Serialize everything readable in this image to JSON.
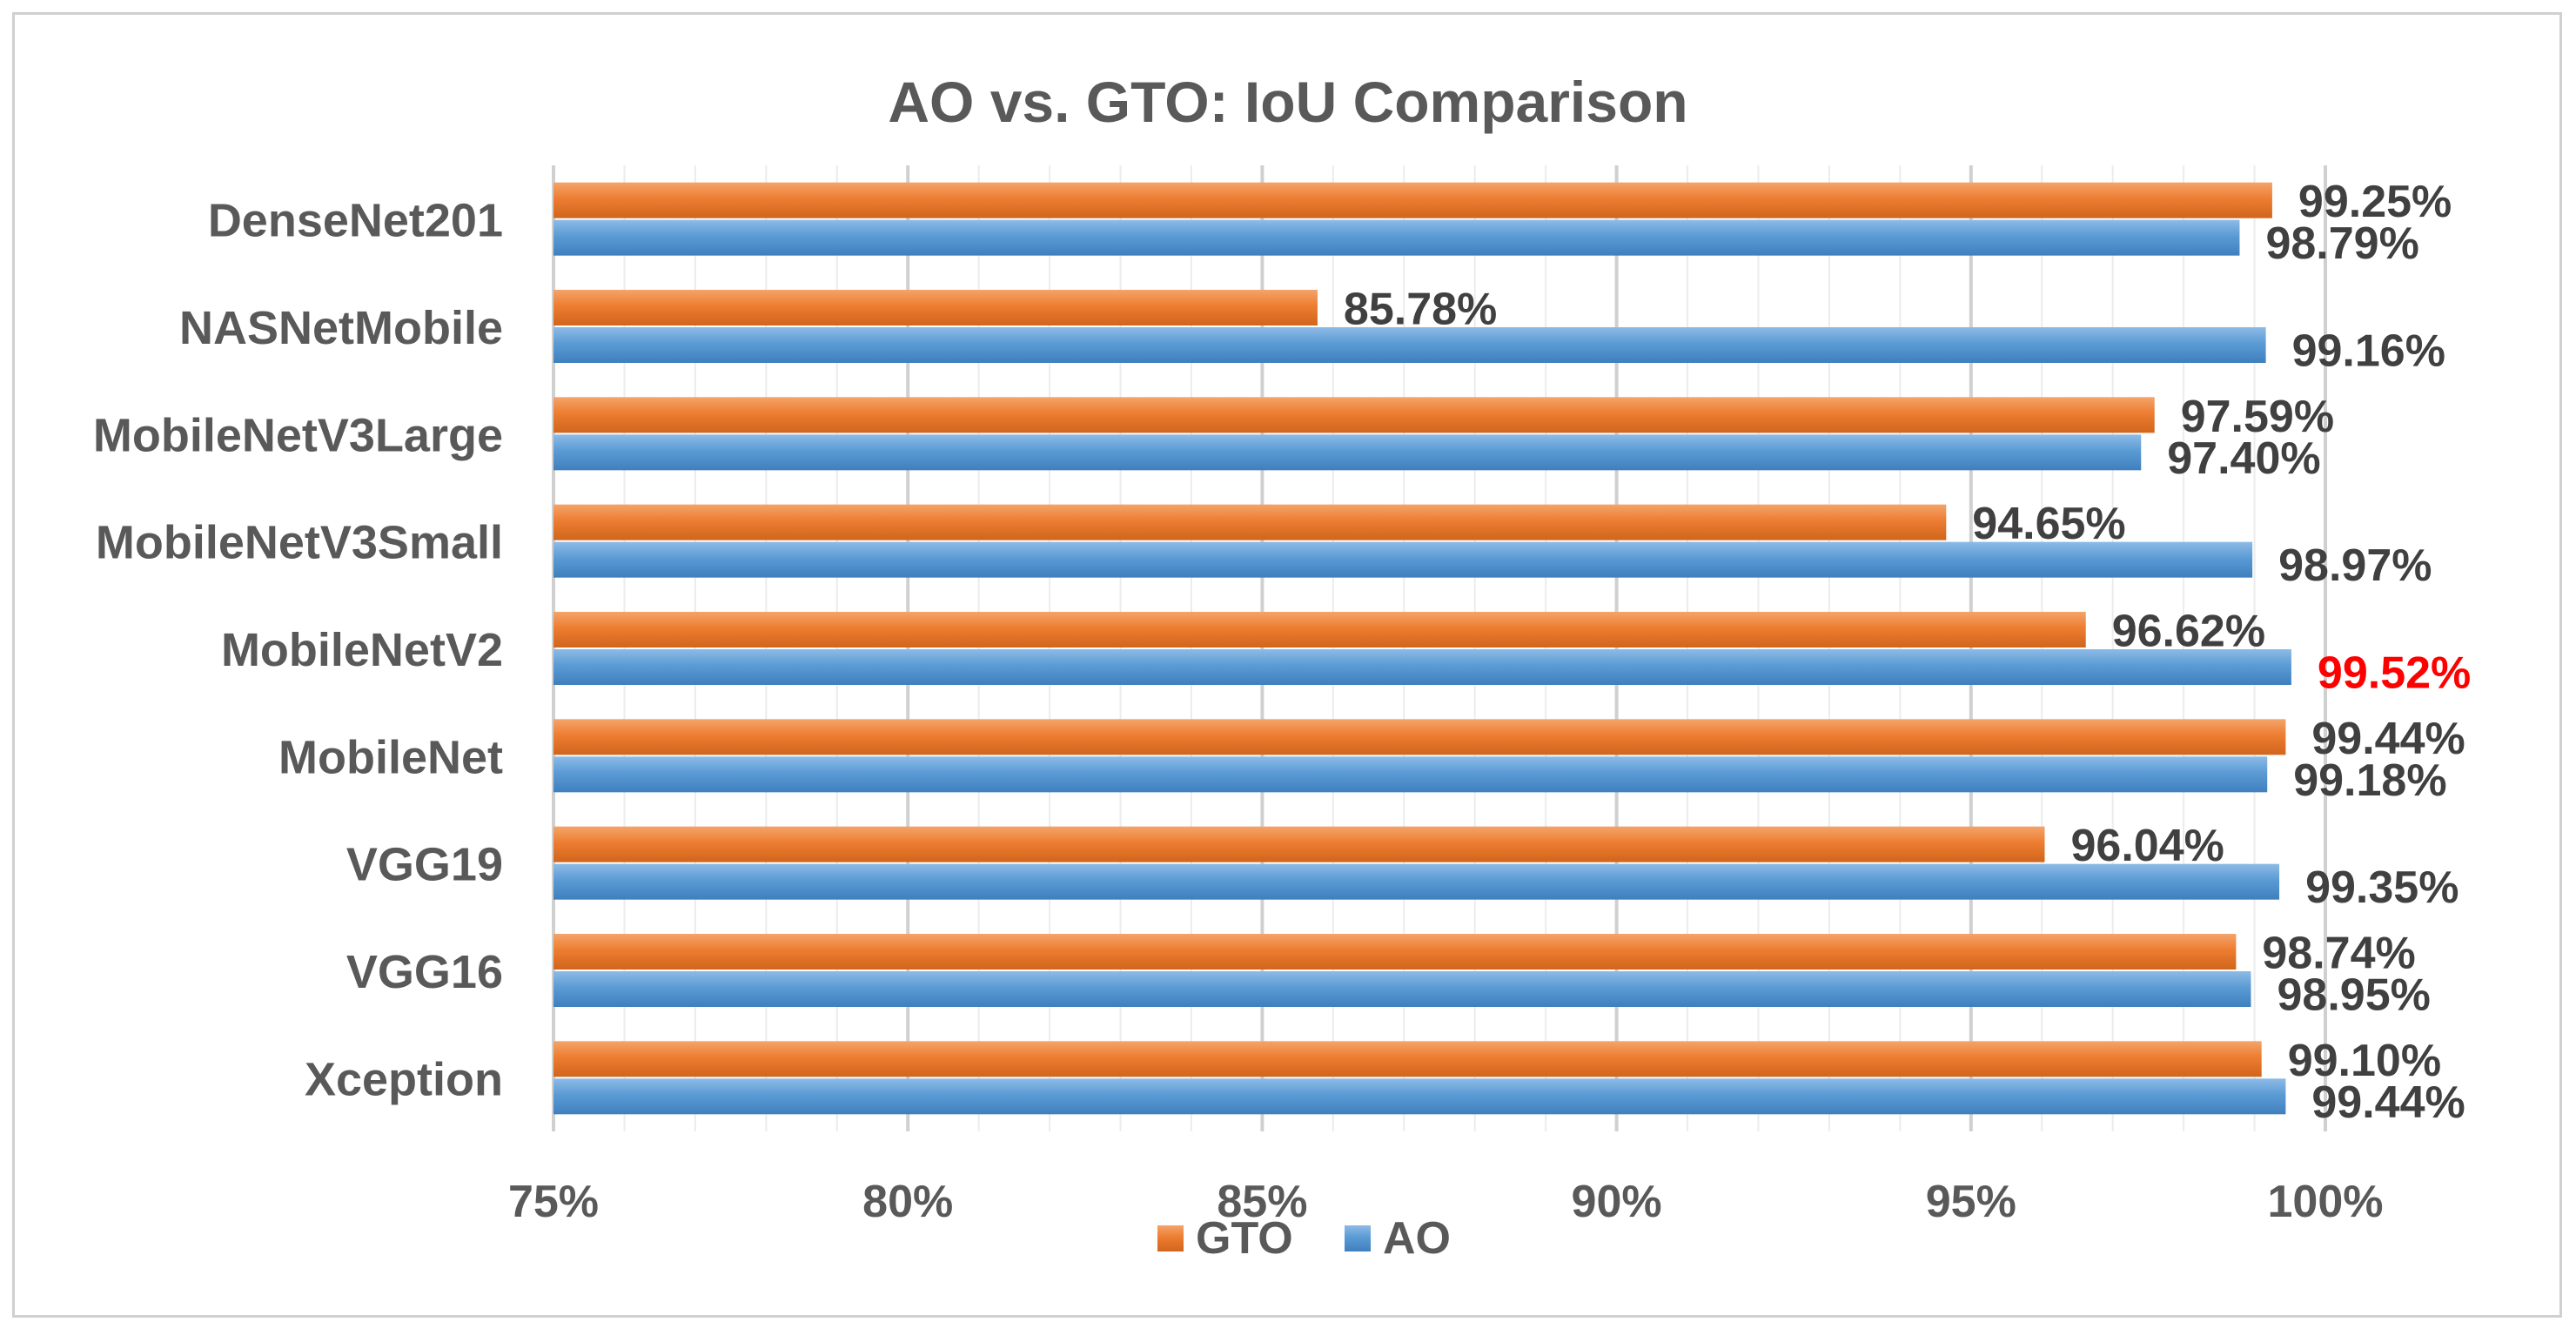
{
  "chart_data": {
    "type": "bar",
    "orientation": "horizontal",
    "title": "AO vs. GTO: IoU Comparison",
    "xlabel": "",
    "ylabel": "",
    "xlim": [
      75,
      100
    ],
    "tick_values": [
      75,
      80,
      85,
      90,
      95,
      100
    ],
    "tick_labels": [
      "75%",
      "80%",
      "85%",
      "90%",
      "95%",
      "100%"
    ],
    "grid": true,
    "legend_position": "bottom",
    "categories": [
      "DenseNet201",
      "NASNetMobile",
      "MobileNetV3Large",
      "MobileNetV3Small",
      "MobileNetV2",
      "MobileNet",
      "VGG19",
      "VGG16",
      "Xception"
    ],
    "series": [
      {
        "name": "GTO",
        "color": "#ED7D31",
        "values": [
          99.25,
          85.78,
          97.59,
          94.65,
          96.62,
          99.44,
          96.04,
          98.74,
          99.1
        ],
        "labels": [
          "99.25%",
          "85.78%",
          "97.59%",
          "94.65%",
          "96.62%",
          "99.44%",
          "96.04%",
          "98.74%",
          "99.10%"
        ]
      },
      {
        "name": "AO",
        "color": "#5B9BD5",
        "values": [
          98.79,
          99.16,
          97.4,
          98.97,
          99.52,
          99.18,
          99.35,
          98.95,
          99.44
        ],
        "labels": [
          "98.79%",
          "99.16%",
          "97.40%",
          "98.97%",
          "99.52%",
          "99.18%",
          "99.35%",
          "98.95%",
          "99.44%"
        ]
      }
    ],
    "highlight": {
      "series": "AO",
      "category": "MobileNetV2",
      "color": "#FF0000"
    }
  }
}
